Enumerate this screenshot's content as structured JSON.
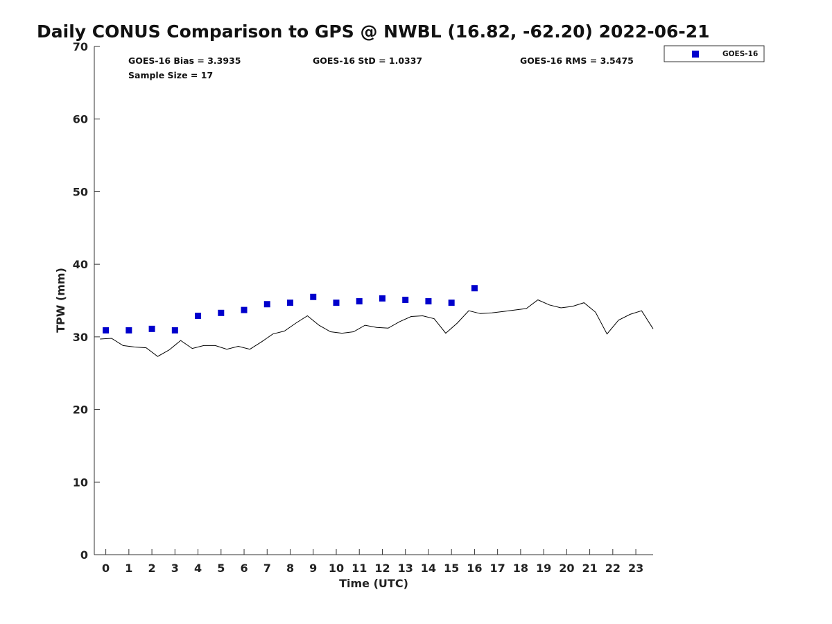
{
  "chart_data": {
    "type": "scatter",
    "title": "Daily CONUS Comparison to GPS @ NWBL (16.82, -62.20) 2022-06-21",
    "xlabel": "Time (UTC)",
    "ylabel": "TPW (mm)",
    "xlim": [
      -0.5,
      23.75
    ],
    "ylim": [
      0,
      70
    ],
    "xticks": [
      0,
      1,
      2,
      3,
      4,
      5,
      6,
      7,
      8,
      9,
      10,
      11,
      12,
      13,
      14,
      15,
      16,
      17,
      18,
      19,
      20,
      21,
      22,
      23
    ],
    "yticks": [
      0,
      10,
      20,
      30,
      40,
      50,
      60,
      70
    ],
    "grid": false,
    "legend_position": "top-right, outside plot",
    "stats": {
      "bias": "GOES-16 Bias = 3.3935",
      "std": "GOES-16 StD = 1.0337",
      "rms": "GOES-16 RMS = 3.5475",
      "sample": "Sample Size = 17"
    },
    "series": [
      {
        "name": "GOES-16",
        "type": "scatter",
        "marker": "square",
        "color": "#0000cc",
        "x": [
          0,
          1,
          2,
          3,
          4,
          5,
          6,
          7,
          8,
          9,
          10,
          11,
          12,
          13,
          14,
          15,
          16
        ],
        "y": [
          30.9,
          30.9,
          31.1,
          30.9,
          32.9,
          33.3,
          33.7,
          34.5,
          34.7,
          35.5,
          34.7,
          34.9,
          35.3,
          35.1,
          34.9,
          34.7,
          36.7
        ]
      },
      {
        "type": "line",
        "color": "#000000",
        "x": [
          -0.25,
          0.25,
          0.75,
          1.25,
          1.75,
          2.25,
          2.75,
          3.25,
          3.75,
          4.25,
          4.75,
          5.25,
          5.75,
          6.25,
          6.75,
          7.25,
          7.75,
          8.25,
          8.75,
          9.25,
          9.75,
          10.25,
          10.75,
          11.25,
          11.75,
          12.25,
          12.75,
          13.25,
          13.75,
          14.25,
          14.75,
          15.25,
          15.75,
          16.25,
          16.75,
          17.25,
          17.75,
          18.25,
          18.75,
          19.25,
          19.75,
          20.25,
          20.75,
          21.25,
          21.75,
          22.25,
          22.75,
          23.25,
          23.75
        ],
        "y": [
          29.7,
          29.8,
          28.8,
          28.6,
          28.5,
          27.3,
          28.2,
          29.5,
          28.4,
          28.8,
          28.8,
          28.3,
          28.7,
          28.3,
          29.3,
          30.4,
          30.8,
          31.9,
          32.9,
          31.6,
          30.7,
          30.5,
          30.7,
          31.6,
          31.3,
          31.2,
          32.1,
          32.8,
          32.9,
          32.5,
          30.5,
          31.9,
          33.6,
          33.2,
          33.3,
          33.5,
          33.7,
          33.9,
          35.1,
          34.4,
          34.0,
          34.2,
          34.7,
          33.4,
          30.4,
          32.3,
          33.1,
          33.6,
          31.1
        ]
      }
    ]
  }
}
